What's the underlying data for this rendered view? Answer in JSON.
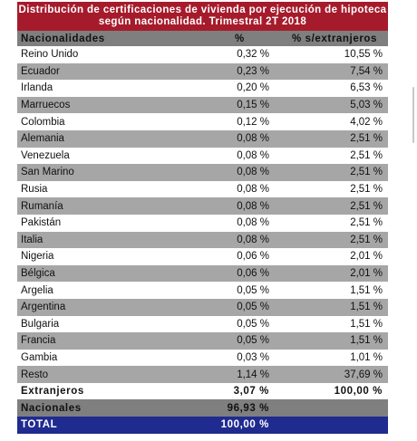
{
  "title_line1": "Distribución de certificaciones de vivienda por ejecución de hipoteca",
  "title_line2": "según nacionalidad. Trimestral 2T 2018",
  "headers": {
    "col1": "Nacionalidades",
    "col2": "%",
    "col3": "% s/extranjeros"
  },
  "rows": [
    {
      "name": "Reino Unido",
      "pct": "0,32 %",
      "pct_ext": "10,55 %"
    },
    {
      "name": "Ecuador",
      "pct": "0,23 %",
      "pct_ext": "7,54 %"
    },
    {
      "name": "Irlanda",
      "pct": "0,20 %",
      "pct_ext": "6,53 %"
    },
    {
      "name": "Marruecos",
      "pct": "0,15 %",
      "pct_ext": "5,03 %"
    },
    {
      "name": "Colombia",
      "pct": "0,12 %",
      "pct_ext": "4,02 %"
    },
    {
      "name": "Alemania",
      "pct": "0,08 %",
      "pct_ext": "2,51 %"
    },
    {
      "name": "Venezuela",
      "pct": "0,08 %",
      "pct_ext": "2,51 %"
    },
    {
      "name": "San Marino",
      "pct": "0,08 %",
      "pct_ext": "2,51 %"
    },
    {
      "name": "Rusia",
      "pct": "0,08 %",
      "pct_ext": "2,51 %"
    },
    {
      "name": "Rumanía",
      "pct": "0,08 %",
      "pct_ext": "2,51 %"
    },
    {
      "name": "Pakistán",
      "pct": "0,08 %",
      "pct_ext": "2,51 %"
    },
    {
      "name": "Italia",
      "pct": "0,08 %",
      "pct_ext": "2,51 %"
    },
    {
      "name": "Nigeria",
      "pct": "0,06 %",
      "pct_ext": "2,01 %"
    },
    {
      "name": "Bélgica",
      "pct": "0,06 %",
      "pct_ext": "2,01 %"
    },
    {
      "name": "Argelia",
      "pct": "0,05 %",
      "pct_ext": "1,51 %"
    },
    {
      "name": "Argentina",
      "pct": "0,05 %",
      "pct_ext": "1,51 %"
    },
    {
      "name": "Bulgaria",
      "pct": "0,05 %",
      "pct_ext": "1,51 %"
    },
    {
      "name": "Francia",
      "pct": "0,05 %",
      "pct_ext": "1,51 %"
    },
    {
      "name": "Gambia",
      "pct": "0,03 %",
      "pct_ext": "1,01 %"
    },
    {
      "name": "Resto",
      "pct": "1,14 %",
      "pct_ext": "37,69 %"
    }
  ],
  "extranjeros": {
    "name": "Extranjeros",
    "pct": "3,07 %",
    "pct_ext": "100,00 %"
  },
  "nacionales": {
    "name": "Nacionales",
    "pct": "96,93 %",
    "pct_ext": ""
  },
  "total": {
    "name": "TOTAL",
    "pct": "100,00 %",
    "pct_ext": ""
  },
  "colors": {
    "title_bg": "#a61b2b",
    "header_bg": "#7f7f7f",
    "stripe_bg": "#a6a6a6",
    "total_bg": "#1f2b8f"
  }
}
